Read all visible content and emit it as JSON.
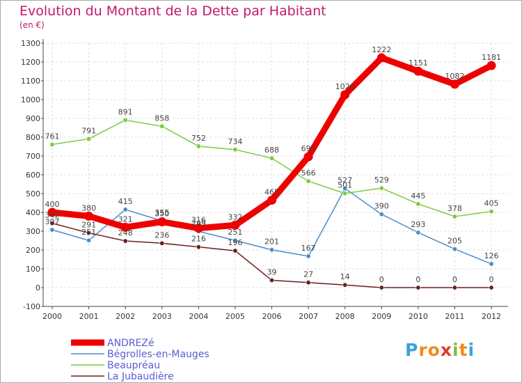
{
  "chart_data": {
    "type": "line",
    "title": "Evolution du Montant de la Dette par Habitant",
    "subtitle": "(en €)",
    "xlabel": "",
    "ylabel": "",
    "x": [
      "2000",
      "2001",
      "2002",
      "2003",
      "2004",
      "2005",
      "2006",
      "2007",
      "2008",
      "2009",
      "2010",
      "2011",
      "2012"
    ],
    "ylim": [
      -100,
      1300
    ],
    "yticks": [
      -100,
      0,
      100,
      200,
      300,
      400,
      500,
      600,
      700,
      800,
      900,
      1000,
      1100,
      1200,
      1300
    ],
    "grid": true,
    "legend_position": "bottom-left",
    "series": [
      {
        "name": "ANDREZé",
        "color": "#ee0000",
        "values": [
          400,
          380,
          321,
          350,
          316,
          332,
          465,
          696,
          1026,
          1222,
          1151,
          1082,
          1181
        ]
      },
      {
        "name": "Bégrolles-en-Mauges",
        "color": "#4a8cc9",
        "values": [
          307,
          251,
          415,
          355,
          299,
          251,
          201,
          167,
          527,
          390,
          293,
          205,
          126
        ]
      },
      {
        "name": "Beaupréau",
        "color": "#7acb3c",
        "values": [
          761,
          791,
          891,
          858,
          752,
          734,
          688,
          566,
          501,
          529,
          445,
          378,
          405
        ]
      },
      {
        "name": "La Jubaudière",
        "color": "#6b1d1d",
        "values": [
          342,
          291,
          248,
          236,
          216,
          196,
          39,
          27,
          14,
          0,
          0,
          0,
          0
        ]
      }
    ]
  },
  "logo": {
    "letters": [
      "P",
      "r",
      "o",
      "x",
      "i",
      "t",
      "i"
    ],
    "colors": [
      "#3aa0dc",
      "#f08a1c",
      "#f08a1c",
      "#e33b2a",
      "#7cbf3a",
      "#f08a1c",
      "#3aa0dc"
    ]
  }
}
